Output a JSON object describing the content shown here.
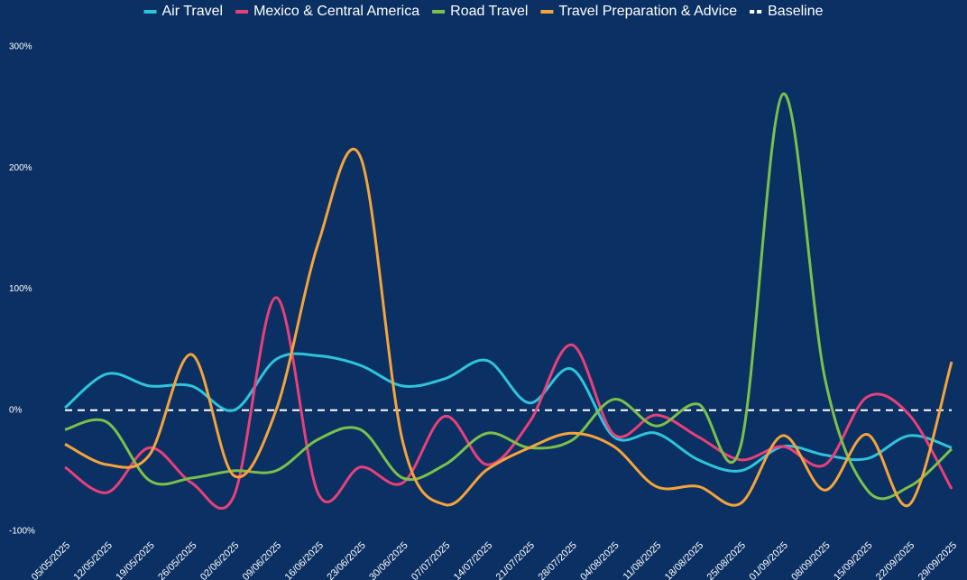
{
  "chart_data": {
    "type": "line",
    "categories": [
      "05/05/2025",
      "12/05/2025",
      "19/05/2025",
      "26/05/2025",
      "02/06/2025",
      "09/06/2025",
      "16/06/2025",
      "23/06/2025",
      "30/06/2025",
      "07/07/2025",
      "14/07/2025",
      "21/07/2025",
      "28/07/2025",
      "04/08/2025",
      "11/08/2025",
      "18/08/2025",
      "25/08/2025",
      "01/09/2025",
      "08/09/2025",
      "15/09/2025",
      "22/09/2025",
      "29/09/2025"
    ],
    "series": [
      {
        "name": "Air Travel",
        "color": "#2ec4dc",
        "values": [
          2,
          30,
          20,
          20,
          0,
          42,
          45,
          37,
          20,
          26,
          41,
          6,
          34,
          -22,
          -19,
          -41,
          -50,
          -30,
          -37,
          -40,
          -21,
          -31
        ]
      },
      {
        "name": "Mexico & Central America",
        "color": "#e8407a",
        "values": [
          -47,
          -68,
          -31,
          -60,
          -71,
          93,
          -69,
          -47,
          -60,
          -5,
          -45,
          -10,
          54,
          -20,
          -4,
          -22,
          -41,
          -30,
          -45,
          11,
          -4,
          -65
        ]
      },
      {
        "name": "Road Travel",
        "color": "#7cc04a",
        "values": [
          -16,
          -10,
          -58,
          -56,
          -50,
          -50,
          -24,
          -16,
          -56,
          -45,
          -19,
          -31,
          -25,
          9,
          -13,
          5,
          -30,
          261,
          26,
          -66,
          -63,
          -32
        ]
      },
      {
        "name": "Travel Preparation & Advice",
        "color": "#f5a43a",
        "values": [
          -28,
          -45,
          -37,
          46,
          -54,
          0,
          138,
          209,
          -26,
          -78,
          -49,
          -31,
          -19,
          -30,
          -63,
          -63,
          -77,
          -21,
          -66,
          -20,
          -78,
          40
        ]
      }
    ],
    "baseline": {
      "name": "Baseline",
      "value": 0,
      "color": "#ffffff"
    },
    "ylim": [
      -100,
      300
    ],
    "yticks": [
      {
        "value": -100,
        "label": "-100%"
      },
      {
        "value": 0,
        "label": "0%"
      },
      {
        "value": 100,
        "label": "100%"
      },
      {
        "value": 200,
        "label": "200%"
      },
      {
        "value": 300,
        "label": "300%"
      }
    ],
    "legend": "top"
  }
}
